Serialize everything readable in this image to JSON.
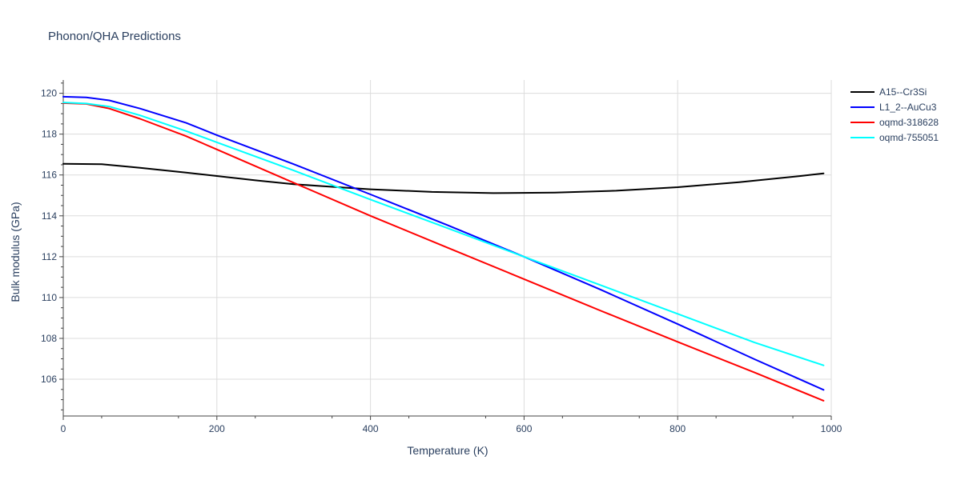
{
  "chart_data": {
    "type": "line",
    "title": "Phonon/QHA Predictions",
    "xlabel": "Temperature (K)",
    "ylabel": "Bulk modulus (GPa)",
    "xlim": [
      0,
      1000
    ],
    "ylim": [
      104.2,
      120.65
    ],
    "x_ticks": [
      0,
      200,
      400,
      600,
      800,
      1000
    ],
    "y_ticks": [
      106,
      108,
      110,
      112,
      114,
      116,
      118,
      120
    ],
    "x_tick_labels": [
      "0",
      "200",
      "400",
      "600",
      "800",
      "1000"
    ],
    "y_tick_labels": [
      "106",
      "108",
      "110",
      "112",
      "114",
      "116",
      "118",
      "120"
    ],
    "grid": true,
    "legend_position": "top-right",
    "series": [
      {
        "name": "A15--Cr3Si",
        "color": "#000000",
        "x": [
          0,
          50,
          100,
          160,
          200,
          250,
          300,
          350,
          400,
          480,
          560,
          640,
          720,
          800,
          880,
          960,
          990
        ],
        "y": [
          116.55,
          116.53,
          116.35,
          116.12,
          115.95,
          115.74,
          115.55,
          115.42,
          115.3,
          115.17,
          115.11,
          115.14,
          115.23,
          115.4,
          115.65,
          115.95,
          116.08
        ]
      },
      {
        "name": "L1_2--AuCu3",
        "color": "#0000ff",
        "x": [
          0,
          30,
          60,
          100,
          160,
          200,
          300,
          400,
          500,
          600,
          700,
          800,
          900,
          990
        ],
        "y": [
          119.83,
          119.8,
          119.65,
          119.25,
          118.55,
          117.95,
          116.53,
          115.05,
          113.55,
          112.0,
          110.38,
          108.7,
          106.98,
          105.48
        ]
      },
      {
        "name": "oqmd-318628",
        "color": "#ff0000",
        "x": [
          0,
          30,
          60,
          100,
          160,
          200,
          300,
          400,
          500,
          600,
          700,
          800,
          900,
          990
        ],
        "y": [
          119.52,
          119.48,
          119.25,
          118.75,
          117.9,
          117.25,
          115.62,
          114.0,
          112.45,
          110.9,
          109.35,
          107.83,
          106.33,
          104.95
        ]
      },
      {
        "name": "oqmd-755051",
        "color": "#00ffff",
        "x": [
          0,
          30,
          60,
          100,
          160,
          200,
          300,
          400,
          500,
          600,
          700,
          800,
          900,
          990
        ],
        "y": [
          119.55,
          119.5,
          119.35,
          118.92,
          118.15,
          117.6,
          116.22,
          114.8,
          113.4,
          112.0,
          110.6,
          109.2,
          107.8,
          106.68
        ]
      }
    ]
  }
}
